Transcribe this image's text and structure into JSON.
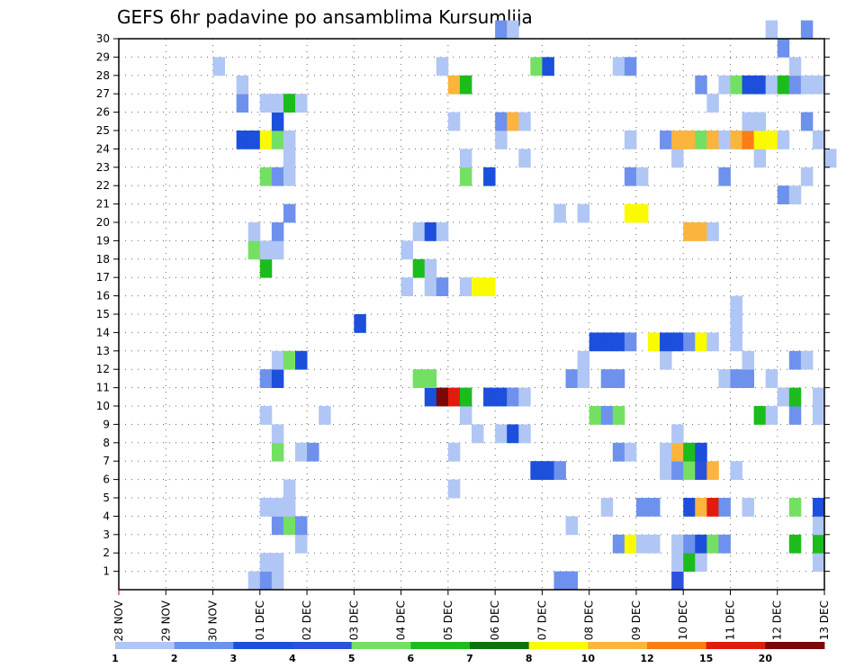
{
  "chart_data": {
    "type": "heatmap",
    "title": "GEFS 6hr padavine po ansamblima Kursumlija",
    "xlabel": "",
    "ylabel": "",
    "x_ticks": [
      "28 NOV",
      "29 NOV",
      "30 NOV",
      "01 DEC",
      "02 DEC",
      "03 DEC",
      "04 DEC",
      "05 DEC",
      "06 DEC",
      "07 DEC",
      "08 DEC",
      "09 DEC",
      "10 DEC",
      "11 DEC",
      "12 DEC",
      "13 DEC"
    ],
    "x_unit": "6hr step",
    "x_range": [
      0,
      60
    ],
    "y_ticks": [
      "1",
      "2",
      "3",
      "4",
      "5",
      "6",
      "7",
      "8",
      "9",
      "10",
      "11",
      "12",
      "13",
      "14",
      "15",
      "16",
      "17",
      "18",
      "19",
      "20",
      "21",
      "22",
      "23",
      "24",
      "25",
      "26",
      "27",
      "28",
      "29",
      "30"
    ],
    "y_range": [
      0,
      30
    ],
    "grid": true,
    "legend": {
      "position": "bottom",
      "levels": [
        "1",
        "2",
        "3",
        "4",
        "5",
        "6",
        "7",
        "8",
        "10",
        "12",
        "15",
        "20"
      ],
      "colors": [
        "#b0c6f4",
        "#6d91ec",
        "#1c4fdc",
        "#2c52dc",
        "#74e063",
        "#1cbc1c",
        "#0f7212",
        "#fbfb00",
        "#fbb43c",
        "#fb7d14",
        "#e11c0c",
        "#7a0808"
      ]
    },
    "cells": [
      {
        "x": 11,
        "y": 0,
        "v": 1
      },
      {
        "x": 12,
        "y": 0,
        "v": 2
      },
      {
        "x": 13,
        "y": 0,
        "v": 1
      },
      {
        "x": 37,
        "y": 0,
        "v": 2
      },
      {
        "x": 38,
        "y": 0,
        "v": 2
      },
      {
        "x": 47,
        "y": 0,
        "v": 4
      },
      {
        "x": 12,
        "y": 1,
        "v": 1
      },
      {
        "x": 13,
        "y": 1,
        "v": 1
      },
      {
        "x": 47,
        "y": 1,
        "v": 1
      },
      {
        "x": 48,
        "y": 1,
        "v": 6
      },
      {
        "x": 49,
        "y": 1,
        "v": 1
      },
      {
        "x": 59,
        "y": 1,
        "v": 1
      },
      {
        "x": 15,
        "y": 2,
        "v": 1
      },
      {
        "x": 42,
        "y": 2,
        "v": 2
      },
      {
        "x": 43,
        "y": 2,
        "v": 8
      },
      {
        "x": 44,
        "y": 2,
        "v": 1
      },
      {
        "x": 45,
        "y": 2,
        "v": 1
      },
      {
        "x": 47,
        "y": 2,
        "v": 1
      },
      {
        "x": 48,
        "y": 2,
        "v": 2
      },
      {
        "x": 49,
        "y": 2,
        "v": 3
      },
      {
        "x": 50,
        "y": 2,
        "v": 5
      },
      {
        "x": 51,
        "y": 2,
        "v": 2
      },
      {
        "x": 57,
        "y": 2,
        "v": 6
      },
      {
        "x": 59,
        "y": 2,
        "v": 6
      },
      {
        "x": 13,
        "y": 3,
        "v": 2
      },
      {
        "x": 14,
        "y": 3,
        "v": 5
      },
      {
        "x": 15,
        "y": 3,
        "v": 2
      },
      {
        "x": 38,
        "y": 3,
        "v": 1
      },
      {
        "x": 59,
        "y": 3,
        "v": 1
      },
      {
        "x": 12,
        "y": 4,
        "v": 1
      },
      {
        "x": 13,
        "y": 4,
        "v": 1
      },
      {
        "x": 14,
        "y": 4,
        "v": 1
      },
      {
        "x": 41,
        "y": 4,
        "v": 1
      },
      {
        "x": 44,
        "y": 4,
        "v": 2
      },
      {
        "x": 45,
        "y": 4,
        "v": 2
      },
      {
        "x": 48,
        "y": 4,
        "v": 3
      },
      {
        "x": 49,
        "y": 4,
        "v": 10
      },
      {
        "x": 50,
        "y": 4,
        "v": 15
      },
      {
        "x": 51,
        "y": 4,
        "v": 2
      },
      {
        "x": 53,
        "y": 4,
        "v": 1
      },
      {
        "x": 57,
        "y": 4,
        "v": 5
      },
      {
        "x": 59,
        "y": 4,
        "v": 3
      },
      {
        "x": 14,
        "y": 5,
        "v": 1
      },
      {
        "x": 28,
        "y": 5,
        "v": 1
      },
      {
        "x": 35,
        "y": 6,
        "v": 3
      },
      {
        "x": 36,
        "y": 6,
        "v": 3
      },
      {
        "x": 37,
        "y": 6,
        "v": 2
      },
      {
        "x": 46,
        "y": 6,
        "v": 1
      },
      {
        "x": 47,
        "y": 6,
        "v": 2
      },
      {
        "x": 48,
        "y": 6,
        "v": 5
      },
      {
        "x": 49,
        "y": 6,
        "v": 4
      },
      {
        "x": 50,
        "y": 6,
        "v": 10
      },
      {
        "x": 52,
        "y": 6,
        "v": 1
      },
      {
        "x": 13,
        "y": 7,
        "v": 5
      },
      {
        "x": 15,
        "y": 7,
        "v": 1
      },
      {
        "x": 16,
        "y": 7,
        "v": 2
      },
      {
        "x": 28,
        "y": 7,
        "v": 1
      },
      {
        "x": 42,
        "y": 7,
        "v": 2
      },
      {
        "x": 43,
        "y": 7,
        "v": 1
      },
      {
        "x": 46,
        "y": 7,
        "v": 1
      },
      {
        "x": 47,
        "y": 7,
        "v": 10
      },
      {
        "x": 48,
        "y": 7,
        "v": 6
      },
      {
        "x": 49,
        "y": 7,
        "v": 3
      },
      {
        "x": 13,
        "y": 8,
        "v": 1
      },
      {
        "x": 30,
        "y": 8,
        "v": 1
      },
      {
        "x": 32,
        "y": 8,
        "v": 1
      },
      {
        "x": 33,
        "y": 8,
        "v": 3
      },
      {
        "x": 34,
        "y": 8,
        "v": 1
      },
      {
        "x": 47,
        "y": 8,
        "v": 1
      },
      {
        "x": 12,
        "y": 9,
        "v": 1
      },
      {
        "x": 17,
        "y": 9,
        "v": 1
      },
      {
        "x": 29,
        "y": 9,
        "v": 1
      },
      {
        "x": 40,
        "y": 9,
        "v": 5
      },
      {
        "x": 41,
        "y": 9,
        "v": 2
      },
      {
        "x": 42,
        "y": 9,
        "v": 5
      },
      {
        "x": 54,
        "y": 9,
        "v": 6
      },
      {
        "x": 55,
        "y": 9,
        "v": 1
      },
      {
        "x": 57,
        "y": 9,
        "v": 2
      },
      {
        "x": 59,
        "y": 9,
        "v": 1
      },
      {
        "x": 26,
        "y": 10,
        "v": 3
      },
      {
        "x": 27,
        "y": 10,
        "v": 20
      },
      {
        "x": 28,
        "y": 10,
        "v": 15
      },
      {
        "x": 29,
        "y": 10,
        "v": 6
      },
      {
        "x": 31,
        "y": 10,
        "v": 3
      },
      {
        "x": 32,
        "y": 10,
        "v": 3
      },
      {
        "x": 33,
        "y": 10,
        "v": 2
      },
      {
        "x": 34,
        "y": 10,
        "v": 1
      },
      {
        "x": 56,
        "y": 10,
        "v": 1
      },
      {
        "x": 57,
        "y": 10,
        "v": 6
      },
      {
        "x": 59,
        "y": 10,
        "v": 1
      },
      {
        "x": 12,
        "y": 11,
        "v": 2
      },
      {
        "x": 13,
        "y": 11,
        "v": 3
      },
      {
        "x": 25,
        "y": 11,
        "v": 5
      },
      {
        "x": 26,
        "y": 11,
        "v": 5
      },
      {
        "x": 38,
        "y": 11,
        "v": 2
      },
      {
        "x": 39,
        "y": 11,
        "v": 1
      },
      {
        "x": 41,
        "y": 11,
        "v": 2
      },
      {
        "x": 42,
        "y": 11,
        "v": 2
      },
      {
        "x": 51,
        "y": 11,
        "v": 1
      },
      {
        "x": 52,
        "y": 11,
        "v": 2
      },
      {
        "x": 53,
        "y": 11,
        "v": 2
      },
      {
        "x": 55,
        "y": 11,
        "v": 1
      },
      {
        "x": 13,
        "y": 12,
        "v": 1
      },
      {
        "x": 14,
        "y": 12,
        "v": 5
      },
      {
        "x": 15,
        "y": 12,
        "v": 3
      },
      {
        "x": 39,
        "y": 12,
        "v": 1
      },
      {
        "x": 46,
        "y": 12,
        "v": 1
      },
      {
        "x": 53,
        "y": 12,
        "v": 1
      },
      {
        "x": 57,
        "y": 12,
        "v": 2
      },
      {
        "x": 58,
        "y": 12,
        "v": 1
      },
      {
        "x": 40,
        "y": 13,
        "v": 3
      },
      {
        "x": 41,
        "y": 13,
        "v": 3
      },
      {
        "x": 42,
        "y": 13,
        "v": 3
      },
      {
        "x": 43,
        "y": 13,
        "v": 2
      },
      {
        "x": 45,
        "y": 13,
        "v": 8
      },
      {
        "x": 46,
        "y": 13,
        "v": 3
      },
      {
        "x": 47,
        "y": 13,
        "v": 3
      },
      {
        "x": 48,
        "y": 13,
        "v": 2
      },
      {
        "x": 49,
        "y": 13,
        "v": 8
      },
      {
        "x": 50,
        "y": 13,
        "v": 1
      },
      {
        "x": 52,
        "y": 13,
        "v": 1
      },
      {
        "x": 20,
        "y": 14,
        "v": 3
      },
      {
        "x": 52,
        "y": 14,
        "v": 1
      },
      {
        "x": 52,
        "y": 15,
        "v": 1
      },
      {
        "x": 24,
        "y": 16,
        "v": 1
      },
      {
        "x": 26,
        "y": 16,
        "v": 1
      },
      {
        "x": 27,
        "y": 16,
        "v": 2
      },
      {
        "x": 29,
        "y": 16,
        "v": 1
      },
      {
        "x": 30,
        "y": 16,
        "v": 8
      },
      {
        "x": 31,
        "y": 16,
        "v": 8
      },
      {
        "x": 12,
        "y": 17,
        "v": 6
      },
      {
        "x": 25,
        "y": 17,
        "v": 6
      },
      {
        "x": 26,
        "y": 17,
        "v": 1
      },
      {
        "x": 11,
        "y": 18,
        "v": 5
      },
      {
        "x": 12,
        "y": 18,
        "v": 1
      },
      {
        "x": 13,
        "y": 18,
        "v": 1
      },
      {
        "x": 24,
        "y": 18,
        "v": 1
      },
      {
        "x": 11,
        "y": 19,
        "v": 1
      },
      {
        "x": 13,
        "y": 19,
        "v": 2
      },
      {
        "x": 25,
        "y": 19,
        "v": 1
      },
      {
        "x": 26,
        "y": 19,
        "v": 3
      },
      {
        "x": 27,
        "y": 19,
        "v": 1
      },
      {
        "x": 48,
        "y": 19,
        "v": 10
      },
      {
        "x": 49,
        "y": 19,
        "v": 10
      },
      {
        "x": 50,
        "y": 19,
        "v": 1
      },
      {
        "x": 14,
        "y": 20,
        "v": 2
      },
      {
        "x": 37,
        "y": 20,
        "v": 1
      },
      {
        "x": 39,
        "y": 20,
        "v": 1
      },
      {
        "x": 43,
        "y": 20,
        "v": 8
      },
      {
        "x": 44,
        "y": 20,
        "v": 8
      },
      {
        "x": 56,
        "y": 21,
        "v": 2
      },
      {
        "x": 57,
        "y": 21,
        "v": 1
      },
      {
        "x": 12,
        "y": 22,
        "v": 5
      },
      {
        "x": 13,
        "y": 22,
        "v": 2
      },
      {
        "x": 14,
        "y": 22,
        "v": 1
      },
      {
        "x": 29,
        "y": 22,
        "v": 5
      },
      {
        "x": 31,
        "y": 22,
        "v": 3
      },
      {
        "x": 43,
        "y": 22,
        "v": 2
      },
      {
        "x": 44,
        "y": 22,
        "v": 1
      },
      {
        "x": 51,
        "y": 22,
        "v": 2
      },
      {
        "x": 58,
        "y": 22,
        "v": 1
      },
      {
        "x": 14,
        "y": 23,
        "v": 1
      },
      {
        "x": 29,
        "y": 23,
        "v": 1
      },
      {
        "x": 34,
        "y": 23,
        "v": 1
      },
      {
        "x": 47,
        "y": 23,
        "v": 1
      },
      {
        "x": 54,
        "y": 23,
        "v": 1
      },
      {
        "x": 60,
        "y": 23,
        "v": 1
      },
      {
        "x": 10,
        "y": 24,
        "v": 3
      },
      {
        "x": 11,
        "y": 24,
        "v": 3
      },
      {
        "x": 12,
        "y": 24,
        "v": 8
      },
      {
        "x": 13,
        "y": 24,
        "v": 5
      },
      {
        "x": 14,
        "y": 24,
        "v": 1
      },
      {
        "x": 32,
        "y": 24,
        "v": 1
      },
      {
        "x": 43,
        "y": 24,
        "v": 1
      },
      {
        "x": 46,
        "y": 24,
        "v": 2
      },
      {
        "x": 47,
        "y": 24,
        "v": 10
      },
      {
        "x": 48,
        "y": 24,
        "v": 10
      },
      {
        "x": 49,
        "y": 24,
        "v": 5
      },
      {
        "x": 50,
        "y": 24,
        "v": 10
      },
      {
        "x": 51,
        "y": 24,
        "v": 1
      },
      {
        "x": 52,
        "y": 24,
        "v": 10
      },
      {
        "x": 53,
        "y": 24,
        "v": 12
      },
      {
        "x": 54,
        "y": 24,
        "v": 8
      },
      {
        "x": 55,
        "y": 24,
        "v": 8
      },
      {
        "x": 56,
        "y": 24,
        "v": 1
      },
      {
        "x": 59,
        "y": 24,
        "v": 1
      },
      {
        "x": 13,
        "y": 25,
        "v": 3
      },
      {
        "x": 28,
        "y": 25,
        "v": 1
      },
      {
        "x": 32,
        "y": 25,
        "v": 2
      },
      {
        "x": 33,
        "y": 25,
        "v": 10
      },
      {
        "x": 34,
        "y": 25,
        "v": 1
      },
      {
        "x": 53,
        "y": 25,
        "v": 1
      },
      {
        "x": 54,
        "y": 25,
        "v": 1
      },
      {
        "x": 58,
        "y": 25,
        "v": 2
      },
      {
        "x": 10,
        "y": 26,
        "v": 2
      },
      {
        "x": 12,
        "y": 26,
        "v": 1
      },
      {
        "x": 13,
        "y": 26,
        "v": 1
      },
      {
        "x": 14,
        "y": 26,
        "v": 6
      },
      {
        "x": 15,
        "y": 26,
        "v": 1
      },
      {
        "x": 50,
        "y": 26,
        "v": 1
      },
      {
        "x": 10,
        "y": 27,
        "v": 1
      },
      {
        "x": 28,
        "y": 27,
        "v": 10
      },
      {
        "x": 29,
        "y": 27,
        "v": 6
      },
      {
        "x": 49,
        "y": 27,
        "v": 2
      },
      {
        "x": 51,
        "y": 27,
        "v": 1
      },
      {
        "x": 52,
        "y": 27,
        "v": 5
      },
      {
        "x": 53,
        "y": 27,
        "v": 3
      },
      {
        "x": 54,
        "y": 27,
        "v": 3
      },
      {
        "x": 55,
        "y": 27,
        "v": 1
      },
      {
        "x": 56,
        "y": 27,
        "v": 6
      },
      {
        "x": 57,
        "y": 27,
        "v": 2
      },
      {
        "x": 58,
        "y": 27,
        "v": 1
      },
      {
        "x": 59,
        "y": 27,
        "v": 1
      },
      {
        "x": 8,
        "y": 28,
        "v": 1
      },
      {
        "x": 27,
        "y": 28,
        "v": 1
      },
      {
        "x": 35,
        "y": 28,
        "v": 5
      },
      {
        "x": 36,
        "y": 28,
        "v": 3
      },
      {
        "x": 42,
        "y": 28,
        "v": 1
      },
      {
        "x": 43,
        "y": 28,
        "v": 2
      },
      {
        "x": 57,
        "y": 28,
        "v": 1
      },
      {
        "x": 56,
        "y": 29,
        "v": 2
      },
      {
        "x": 32,
        "y": 30,
        "v": 2
      },
      {
        "x": 33,
        "y": 30,
        "v": 1
      },
      {
        "x": 55,
        "y": 30,
        "v": 1
      },
      {
        "x": 58,
        "y": 30,
        "v": 2
      }
    ]
  }
}
